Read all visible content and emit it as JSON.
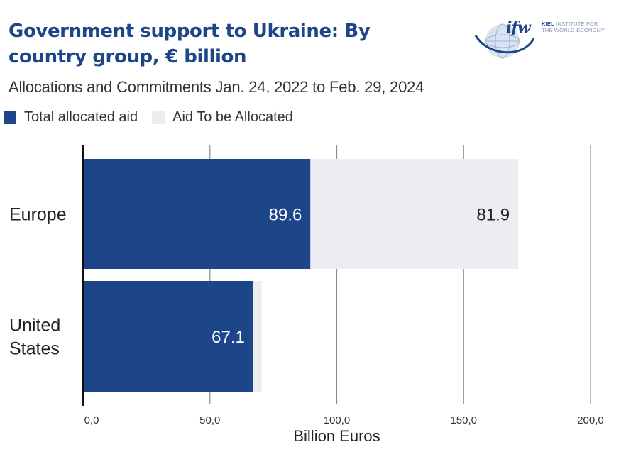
{
  "header": {
    "title": "Government support to Ukraine: By country group, € billion",
    "subtitle": "Allocations and Commitments Jan. 24, 2022 to Feb. 29, 2024"
  },
  "logo": {
    "mark": "ifw",
    "org_bold": "KIEL",
    "org_line1": " INSTITUTE FOR",
    "org_line2": "THE WORLD ECONOMY"
  },
  "legend": {
    "items": [
      {
        "label": "Total allocated aid",
        "color": "#1d4689"
      },
      {
        "label": "Aid To be Allocated",
        "color": "#ecedf3"
      }
    ]
  },
  "chart_data": {
    "type": "bar",
    "orientation": "horizontal",
    "stacked": true,
    "categories": [
      "Europe",
      "United States"
    ],
    "series": [
      {
        "name": "Total allocated aid",
        "values": [
          89.6,
          67.1
        ],
        "color": "#1d4689",
        "labels": [
          "89.6",
          "67.1"
        ]
      },
      {
        "name": "Aid To be Allocated",
        "values": [
          81.9,
          3.3
        ],
        "color": "#ecedf3",
        "labels": [
          "81.9",
          ""
        ]
      }
    ],
    "xlabel": "Billion Euros",
    "xlim": [
      0,
      200
    ],
    "xticks": [
      0,
      50,
      100,
      150,
      200
    ],
    "xtick_labels": [
      "0,0",
      "50,0",
      "100,0",
      "150,0",
      "200,0"
    ],
    "grid": true
  }
}
